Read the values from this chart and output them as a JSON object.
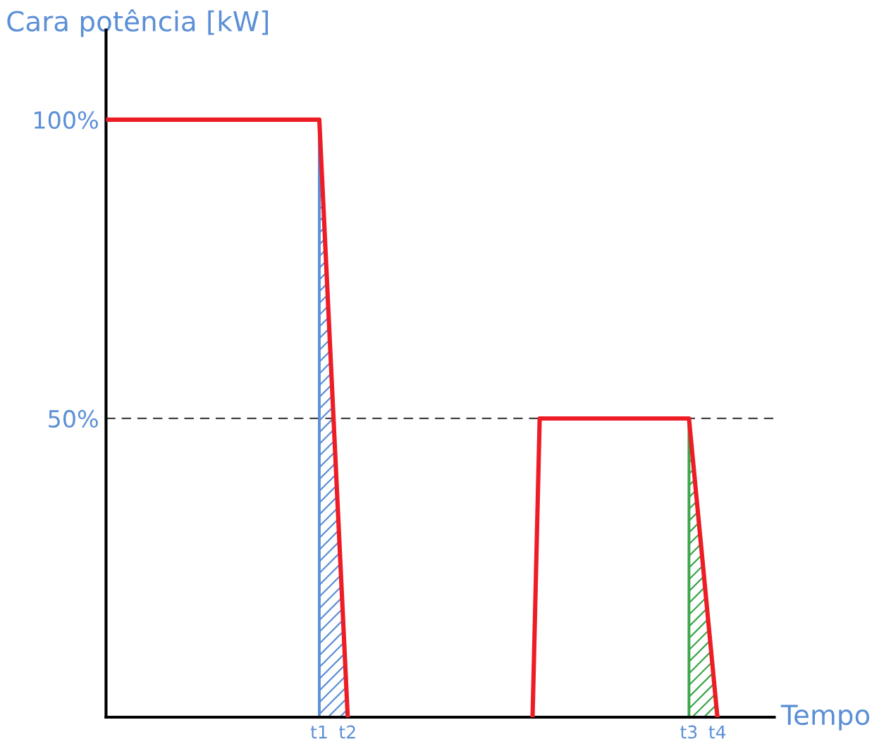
{
  "chart_data": {
    "type": "line",
    "ylabel": "Cara potência [kW]",
    "xlabel": "Tempo",
    "categories": [
      null,
      null,
      null,
      null,
      null,
      null,
      null,
      null,
      null,
      null,
      null,
      null,
      null,
      null,
      null,
      null,
      null,
      null,
      null,
      null,
      null,
      null,
      null,
      null,
      null,
      null,
      null,
      null,
      null,
      null,
      "t1",
      null,
      null,
      null,
      "t2",
      null,
      null,
      null,
      null,
      null,
      null,
      null,
      null,
      null,
      null,
      null,
      null,
      null,
      null,
      null,
      null,
      null,
      null,
      null,
      null,
      null,
      null,
      null,
      null,
      null,
      null,
      null,
      null,
      null,
      null,
      null,
      null,
      null,
      null,
      null,
      null,
      null,
      null,
      null,
      null,
      null,
      null,
      null,
      null,
      null,
      null,
      null,
      "t3",
      null,
      null,
      null,
      "t4",
      null,
      null,
      null,
      null,
      null,
      null,
      null,
      null
    ],
    "series": [
      {
        "color": "#ee1c25",
        "values": [
          100,
          100,
          100,
          100,
          100,
          100,
          100,
          100,
          100,
          100,
          100,
          100,
          100,
          100,
          100,
          100,
          100,
          100,
          100,
          100,
          100,
          100,
          100,
          100,
          100,
          100,
          100,
          100,
          100,
          100,
          100,
          75,
          50,
          25,
          0,
          null,
          null,
          null,
          null,
          null,
          null,
          null,
          null,
          null,
          null,
          null,
          null,
          null,
          null,
          null,
          null,
          null,
          null,
          null,
          null,
          null,
          null,
          null,
          null,
          null,
          null,
          null,
          null,
          null,
          null,
          null,
          null,
          null,
          null,
          null,
          null,
          null,
          null,
          null,
          null,
          null,
          null,
          null,
          null,
          null,
          null,
          null,
          null,
          null,
          null,
          null,
          null,
          null,
          null,
          null,
          null,
          null,
          null,
          null,
          null
        ]
      },
      {
        "color": "#ee1c25",
        "values": [
          null,
          null,
          null,
          null,
          null,
          null,
          null,
          null,
          null,
          null,
          null,
          null,
          null,
          null,
          null,
          null,
          null,
          null,
          null,
          null,
          null,
          null,
          null,
          null,
          null,
          null,
          null,
          null,
          null,
          null,
          null,
          null,
          null,
          null,
          null,
          null,
          null,
          null,
          null,
          null,
          null,
          null,
          null,
          null,
          null,
          null,
          null,
          null,
          null,
          null,
          null,
          null,
          null,
          null,
          null,
          null,
          null,
          null,
          null,
          null,
          0,
          50,
          50,
          50,
          50,
          50,
          50,
          50,
          50,
          50,
          50,
          50,
          50,
          50,
          50,
          50,
          50,
          50,
          50,
          50,
          50,
          50,
          50,
          37.5,
          25,
          12.5,
          0,
          null,
          null,
          null,
          null,
          null,
          null,
          null,
          null
        ]
      },
      {
        "type": "area",
        "color": "#5b8fd6",
        "values": [
          null,
          null,
          null,
          null,
          null,
          null,
          null,
          null,
          null,
          null,
          null,
          null,
          null,
          null,
          null,
          null,
          null,
          null,
          null,
          null,
          null,
          null,
          null,
          null,
          null,
          null,
          null,
          null,
          null,
          null,
          100,
          75,
          50,
          25,
          0,
          null,
          null,
          null,
          null,
          null,
          null,
          null,
          null,
          null,
          null,
          null,
          null,
          null,
          null,
          null,
          null,
          null,
          null,
          null,
          null,
          null,
          null,
          null,
          null,
          null,
          null,
          null,
          null,
          null,
          null,
          null,
          null,
          null,
          null,
          null,
          null,
          null,
          null,
          null,
          null,
          null,
          null,
          null,
          null,
          null,
          null,
          null,
          null,
          null,
          null,
          null,
          null,
          null,
          null,
          null,
          null,
          null,
          null,
          null,
          null
        ]
      },
      {
        "type": "area",
        "color": "#3aa64a",
        "values": [
          null,
          null,
          null,
          null,
          null,
          null,
          null,
          null,
          null,
          null,
          null,
          null,
          null,
          null,
          null,
          null,
          null,
          null,
          null,
          null,
          null,
          null,
          null,
          null,
          null,
          null,
          null,
          null,
          null,
          null,
          null,
          null,
          null,
          null,
          null,
          null,
          null,
          null,
          null,
          null,
          null,
          null,
          null,
          null,
          null,
          null,
          null,
          null,
          null,
          null,
          null,
          null,
          null,
          null,
          null,
          null,
          null,
          null,
          null,
          null,
          null,
          null,
          null,
          null,
          null,
          null,
          null,
          null,
          null,
          null,
          null,
          null,
          null,
          null,
          null,
          null,
          null,
          null,
          null,
          null,
          null,
          null,
          50,
          37.5,
          25,
          12.5,
          0,
          null,
          null,
          null,
          null,
          null,
          null,
          null,
          null
        ]
      }
    ],
    "ylim": [
      0,
      115
    ],
    "yticks": [
      {
        "value": 100,
        "label": "100%"
      },
      {
        "value": 50,
        "label": "50%"
      }
    ],
    "ref_lines": [
      {
        "axis": "y",
        "value": 50,
        "label": null,
        "color": "#444444",
        "line_style": "dashed"
      }
    ],
    "grid": false,
    "legend": false
  }
}
